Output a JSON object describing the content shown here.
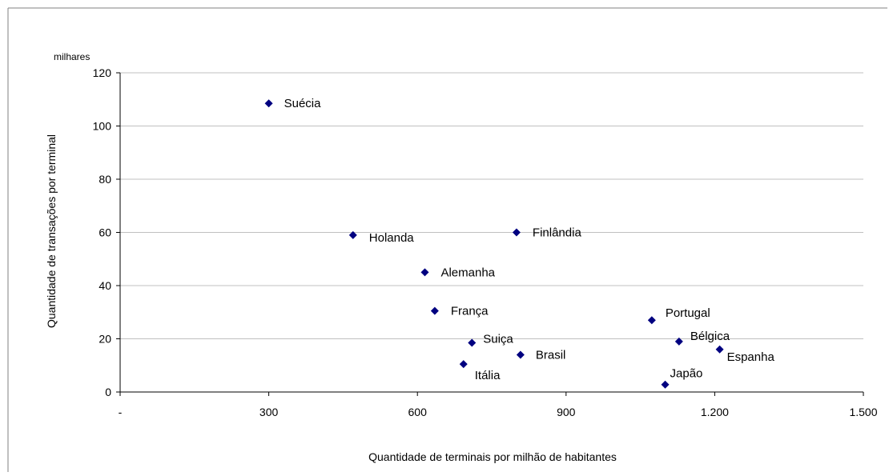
{
  "chart_data": {
    "type": "scatter",
    "unit_label": "milhares",
    "xlabel": "Quantidade de terminais por milhão de habitantes",
    "ylabel": "Quantidade de transações por terminal",
    "xlim": [
      0,
      1500
    ],
    "ylim": [
      0,
      120
    ],
    "x_ticks": [
      "-",
      "300",
      "600",
      "900",
      "1.200",
      "1.500"
    ],
    "y_ticks": [
      "0",
      "20",
      "40",
      "60",
      "80",
      "100",
      "120"
    ],
    "grid": "horizontal",
    "marker_color": "#000080",
    "points": [
      {
        "label": "Suécia",
        "x": 300,
        "y": 108.5
      },
      {
        "label": "Holanda",
        "x": 470,
        "y": 59
      },
      {
        "label": "Finlândia",
        "x": 800,
        "y": 60
      },
      {
        "label": "Alemanha",
        "x": 615,
        "y": 45
      },
      {
        "label": "França",
        "x": 635,
        "y": 30.5
      },
      {
        "label": "Suiça",
        "x": 710,
        "y": 18.5
      },
      {
        "label": "Itália",
        "x": 693,
        "y": 10.5
      },
      {
        "label": "Brasil",
        "x": 808,
        "y": 14
      },
      {
        "label": "Portugal",
        "x": 1073,
        "y": 27
      },
      {
        "label": "Bélgica",
        "x": 1128,
        "y": 19
      },
      {
        "label": "Espanha",
        "x": 1210,
        "y": 16
      },
      {
        "label": "Japão",
        "x": 1100,
        "y": 2.8
      }
    ]
  }
}
